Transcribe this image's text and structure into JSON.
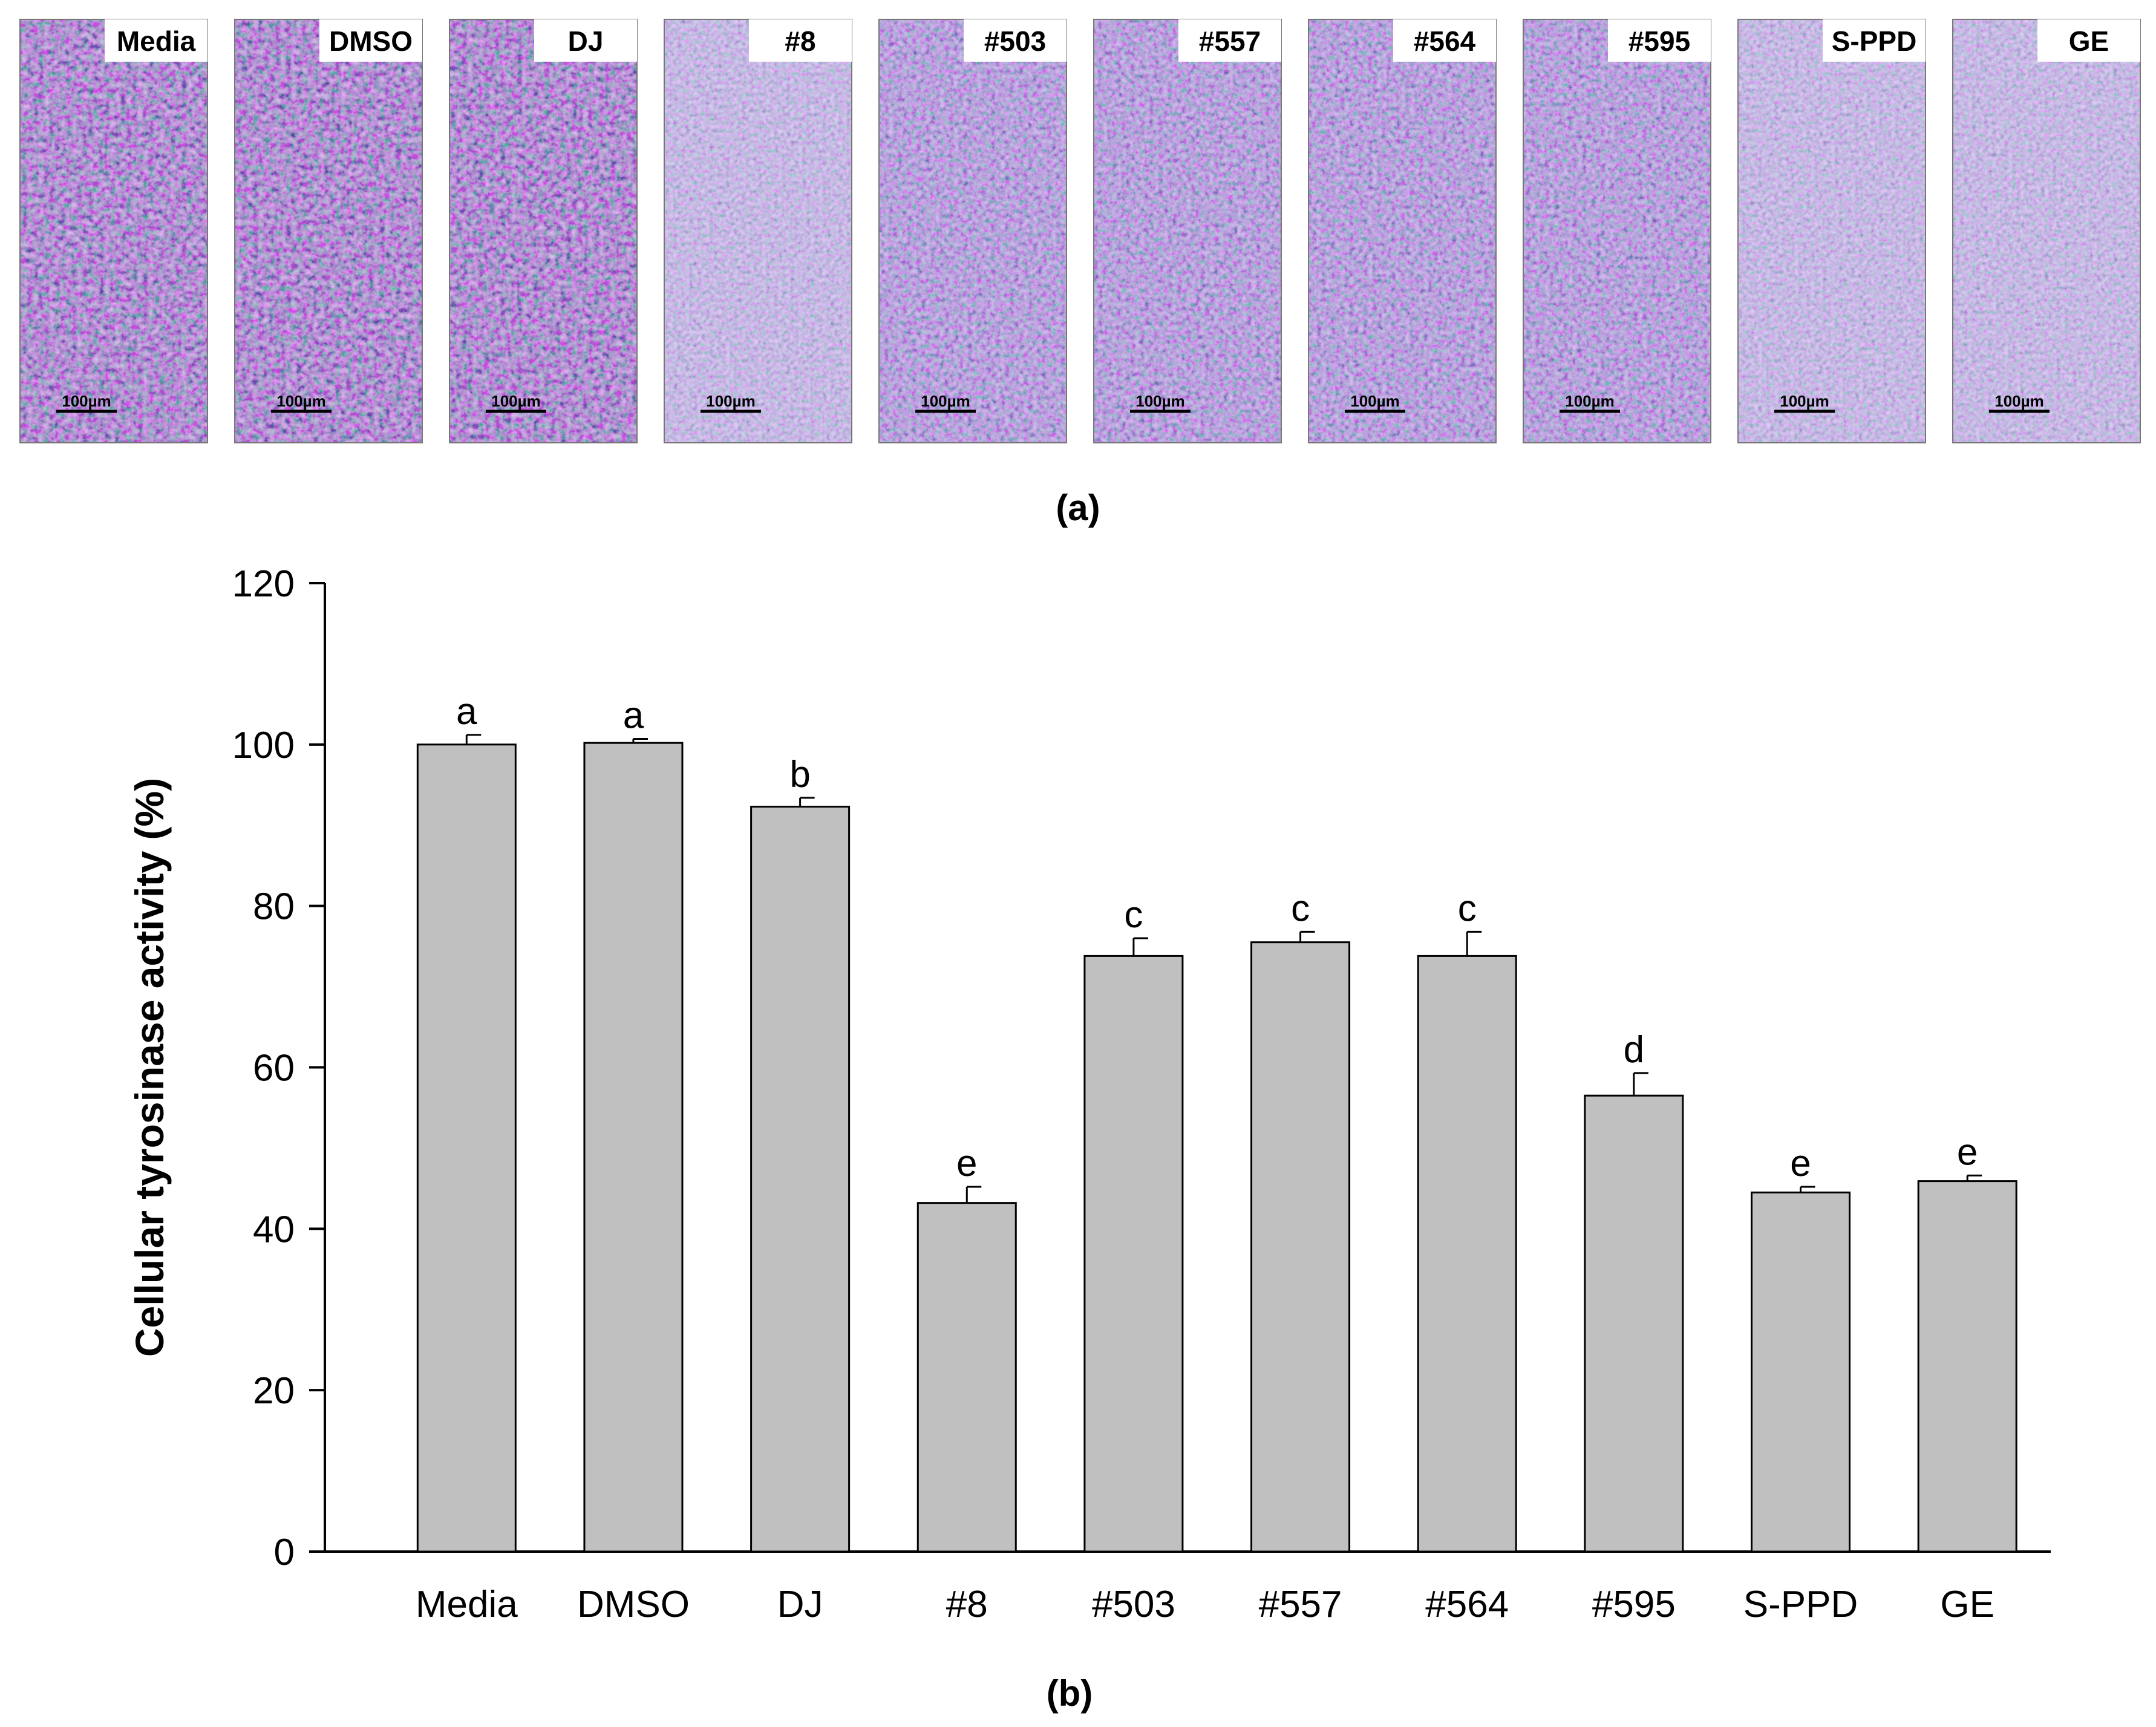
{
  "panel_a": {
    "label": "(a)",
    "images": [
      {
        "label": "Media",
        "scale_bar": "100µm",
        "pigment": "high"
      },
      {
        "label": "DMSO",
        "scale_bar": "100µm",
        "pigment": "high"
      },
      {
        "label": "DJ",
        "scale_bar": "100µm",
        "pigment": "high"
      },
      {
        "label": "#8",
        "scale_bar": "100µm",
        "pigment": "low"
      },
      {
        "label": "#503",
        "scale_bar": "100µm",
        "pigment": "medium"
      },
      {
        "label": "#557",
        "scale_bar": "100µm",
        "pigment": "medium"
      },
      {
        "label": "#564",
        "scale_bar": "100µm",
        "pigment": "medium"
      },
      {
        "label": "#595",
        "scale_bar": "100µm",
        "pigment": "medium"
      },
      {
        "label": "S-PPD",
        "scale_bar": "100µm",
        "pigment": "low"
      },
      {
        "label": "GE",
        "scale_bar": "100µm",
        "pigment": "low"
      }
    ]
  },
  "panel_b": {
    "label": "(b)"
  },
  "chart_data": {
    "type": "bar",
    "title": "",
    "xlabel": "",
    "ylabel": "Cellular tyrosinase activity (%)",
    "ylim": [
      0,
      120
    ],
    "yticks": [
      0,
      20,
      40,
      60,
      80,
      100,
      120
    ],
    "grid": false,
    "categories": [
      "Media",
      "DMSO",
      "DJ",
      "#8",
      "#503",
      "#557",
      "#564",
      "#595",
      "S-PPD",
      "GE"
    ],
    "values": [
      100,
      100.2,
      92.3,
      43.2,
      73.8,
      75.5,
      73.8,
      56.5,
      44.5,
      45.9
    ],
    "errors": [
      1.2,
      0.5,
      1.1,
      2.0,
      2.2,
      1.3,
      3.0,
      2.8,
      0.7,
      0.7
    ],
    "significance": [
      "a",
      "a",
      "b",
      "e",
      "c",
      "c",
      "c",
      "d",
      "e",
      "e"
    ],
    "bar_color": "#c0c0c0"
  }
}
